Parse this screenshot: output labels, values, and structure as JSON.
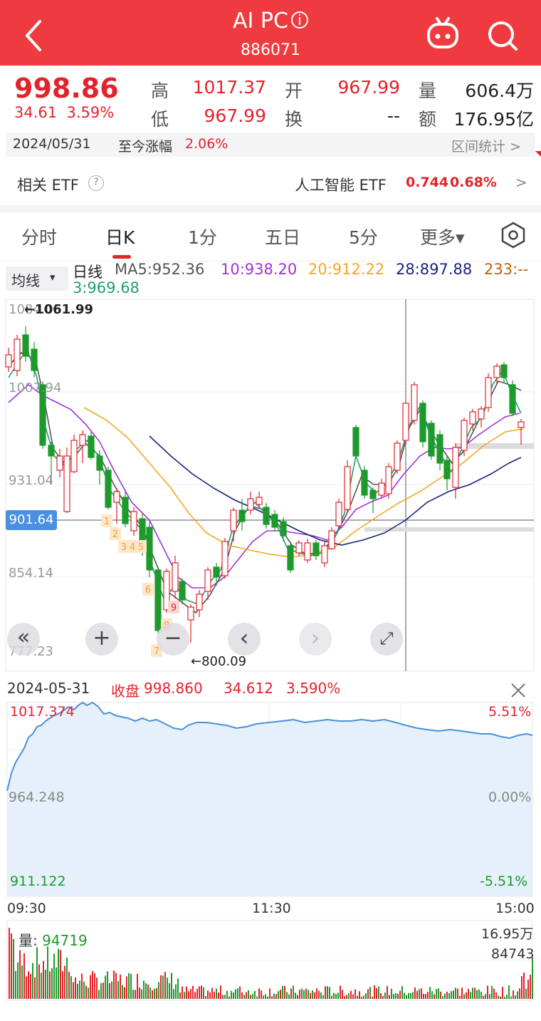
{
  "header": {
    "title": "AI PC",
    "code": "886071",
    "back_icon": "chevron-left-icon",
    "info_icon": "info-icon",
    "robot_icon": "robot-icon",
    "search_icon": "search-icon"
  },
  "quote": {
    "price": "998.86",
    "change": "34.61",
    "change_pct": "3.59%",
    "high_label": "高",
    "high": "1017.37",
    "open_label": "开",
    "open": "967.99",
    "volume_label": "量",
    "volume": "606.4万",
    "low_label": "低",
    "low": "967.99",
    "turnover_label": "换",
    "turnover": "--",
    "amount_label": "额",
    "amount": "176.95亿"
  },
  "day_bar": {
    "date": "2024/05/31",
    "ytd_label": "至今涨幅",
    "ytd": "2.06%",
    "range_stats": "区间统计",
    "arrow": ">"
  },
  "etf": {
    "label": "相关 ETF",
    "help": "?",
    "name": "人工智能 ETF",
    "price": "0.744",
    "pct": "0.68%",
    "arrow": ">"
  },
  "tabs": [
    {
      "label": "分时"
    },
    {
      "label": "日K"
    },
    {
      "label": "1分"
    },
    {
      "label": "五日"
    },
    {
      "label": "5分"
    },
    {
      "label": "更多▾"
    }
  ],
  "settings_icon": "hexagon-settings-icon",
  "ma_select": {
    "label": "均线",
    "arrow": "▾"
  },
  "ma_legend": {
    "type": "日线",
    "ma5": "MA5:952.36",
    "ma10": "10:938.20",
    "ma20": "20:912.22",
    "ma28": "28:897.88",
    "ma233": "233:--",
    "ma3": "3:969.68"
  },
  "kline": {
    "y_labels": [
      "1084.05",
      "1007.94",
      "931.04",
      "854.14",
      "777.23"
    ],
    "max_marker": "←1061.99",
    "min_marker": "←800.09",
    "crosshair_price": "901.64",
    "colors": {
      "up": "#e3232c",
      "down": "#1e9a2c",
      "ma5": "#555555",
      "ma10": "#a232d8",
      "ma20": "#f5a623",
      "ma28": "#1a237e",
      "ma3": "#20a070"
    },
    "sequence_badges": [
      "1",
      "2",
      "3",
      "4",
      "5",
      "6",
      "7",
      "8",
      "9"
    ],
    "controls": [
      "«",
      "+",
      "−",
      "‹",
      "›",
      "⤢"
    ]
  },
  "intraday_info": {
    "date": "2024-05-31",
    "close_label": "收盘",
    "close": "998.860",
    "change": "34.612",
    "pct": "3.590%",
    "close_icon": "close-icon"
  },
  "intraday": {
    "top": "1017.374",
    "mid": "964.248",
    "bottom": "911.122",
    "top_pct": "5.51%",
    "mid_pct": "0.00%",
    "bottom_pct": "-5.51%",
    "time_start": "09:30",
    "time_mid": "11:30",
    "time_end": "15:00",
    "line_color": "#4a90d9"
  },
  "volume": {
    "label": "量:",
    "value": "94719",
    "max": "16.95万",
    "mid": "84743"
  }
}
